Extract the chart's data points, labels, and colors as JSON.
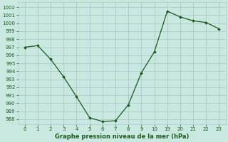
{
  "y_values": [
    997,
    997.2,
    995.5,
    993.3,
    990.8,
    988.2,
    987.7,
    987.8,
    989.8,
    993.8,
    996.4,
    1001.5,
    1000.8,
    1000.3,
    1000.1,
    999.3
  ],
  "x_indices": [
    0,
    1,
    2,
    3,
    4,
    5,
    6,
    7,
    8,
    9,
    10,
    11,
    12,
    13,
    14,
    15
  ],
  "x_labels": [
    "0",
    "1",
    "2",
    "3",
    "4",
    "5",
    "6",
    "7",
    "8",
    "9",
    "10",
    "19",
    "20",
    "21",
    "22",
    "23"
  ],
  "line_color": "#1a5c1a",
  "bg_color": "#c8e8e0",
  "grid_color": "#aacccc",
  "title": "Graphe pression niveau de la mer (hPa)",
  "ytick_min": 988,
  "ytick_max": 1002,
  "ylim_min": 987.4,
  "ylim_max": 1002.6,
  "xlim_min": -0.5,
  "xlim_max": 15.5
}
